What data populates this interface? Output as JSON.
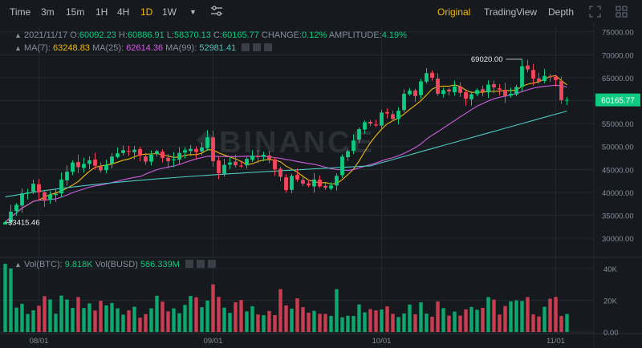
{
  "toolbar": {
    "timeframes": [
      "Time",
      "3m",
      "15m",
      "1H",
      "4H",
      "1D",
      "1W"
    ],
    "active_timeframe": "1D",
    "views": [
      "Original",
      "TradingView",
      "Depth"
    ],
    "active_view": "Original"
  },
  "header": {
    "date": "2021/11/17",
    "o_label": "O:",
    "o": "60092.23",
    "h_label": "H:",
    "h": "60886.91",
    "l_label": "L:",
    "l": "58370.13",
    "c_label": "C:",
    "c": "60165.77",
    "change_label": "CHANGE:",
    "change": "0.12%",
    "amp_label": "AMPLITUDE:",
    "amp": "4.19%",
    "ma7_label": "MA(7):",
    "ma7": "63248.83",
    "ma25_label": "MA(25):",
    "ma25": "62614.36",
    "ma99_label": "MA(99):",
    "ma99": "52981.41"
  },
  "volume_header": {
    "vol_btc_label": "Vol(BTC):",
    "vol_btc": "9.818K",
    "vol_busd_label": "Vol(BUSD)",
    "vol_busd": "586.339M"
  },
  "watermark": "BINANCE",
  "colors": {
    "up": "#0ecb81",
    "down": "#f6465d",
    "ma7": "#f0b90b",
    "ma25": "#d05ee0",
    "ma99": "#4ec7c0",
    "bg": "#161a1e",
    "grid": "#23282e"
  },
  "chart_data": {
    "type": "candlestick",
    "price_axis_ticks": [
      "75000.00",
      "70000.00",
      "65000.00",
      "60000.00",
      "55000.00",
      "50000.00",
      "45000.00",
      "40000.00",
      "35000.00",
      "30000.00"
    ],
    "price_range": [
      26000,
      76000
    ],
    "volume_axis_ticks": [
      "40K",
      "20K",
      "0.00"
    ],
    "volume_range": [
      0,
      45000
    ],
    "x_ticks": [
      "08/01",
      "09/01",
      "10/01",
      "11/01"
    ],
    "x_tick_index": [
      6,
      37,
      67,
      98
    ],
    "last_price": "60165.77",
    "high_label": "69020.00",
    "low_label": "33415.46",
    "closes": [
      33500,
      35800,
      37300,
      39800,
      40000,
      41900,
      40000,
      38200,
      39500,
      39700,
      42800,
      44500,
      46500,
      45500,
      46200,
      47000,
      45800,
      44800,
      46000,
      47800,
      48500,
      49200,
      48800,
      49300,
      48000,
      46700,
      48200,
      49000,
      47500,
      46800,
      47200,
      48600,
      49200,
      49500,
      48800,
      49800,
      52000,
      46800,
      44200,
      46000,
      46500,
      45900,
      45800,
      47300,
      48000,
      47700,
      48200,
      47200,
      45000,
      43400,
      40500,
      43600,
      42800,
      41900,
      41500,
      42800,
      41300,
      41000,
      41500,
      43600,
      47800,
      49000,
      51300,
      53800,
      55300,
      55000,
      54600,
      57400,
      57200,
      56000,
      57800,
      61500,
      62200,
      61000,
      64200,
      66000,
      65000,
      61500,
      62300,
      62000,
      63100,
      61700,
      60400,
      61400,
      62300,
      61900,
      63500,
      62900,
      62400,
      61000,
      61500,
      63000,
      67500,
      66800,
      64800,
      64100,
      65400,
      65100,
      64500,
      60100,
      60166
    ],
    "ma7_last": 63248.83,
    "ma25_last": 62614.36,
    "ma99_last": 52981.41
  }
}
